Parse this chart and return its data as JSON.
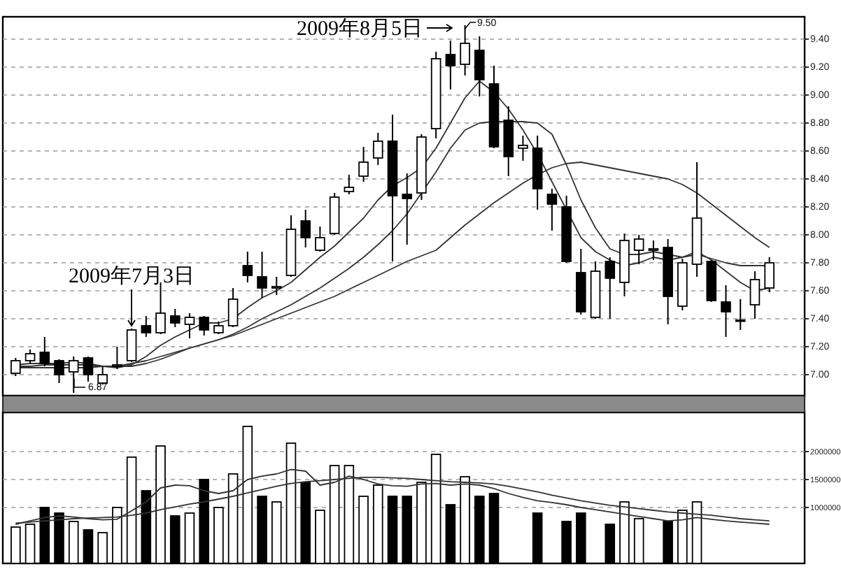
{
  "chart_data": [
    {
      "type": "candlestick",
      "categories": [
        null,
        null,
        null,
        null,
        null,
        null,
        null,
        null,
        null,
        null,
        null,
        null,
        null,
        null,
        null,
        null,
        null,
        null,
        null,
        null,
        null,
        null,
        null,
        null,
        null,
        null,
        null,
        null,
        null,
        null,
        null,
        null,
        null,
        null,
        null,
        null,
        null,
        null,
        null,
        null,
        null,
        null,
        null,
        null,
        null,
        null,
        null,
        null,
        null,
        null,
        null,
        null,
        null
      ],
      "ohlc": [
        [
          7.01,
          7.12,
          6.99,
          7.1
        ],
        [
          7.1,
          7.18,
          7.08,
          7.15
        ],
        [
          7.16,
          7.27,
          7.06,
          7.08
        ],
        [
          7.1,
          7.11,
          6.94,
          7.0
        ],
        [
          7.02,
          7.13,
          6.87,
          7.1
        ],
        [
          7.12,
          7.13,
          6.95,
          7.0
        ],
        [
          6.94,
          7.06,
          6.93,
          7.0
        ],
        [
          7.06,
          7.2,
          7.04,
          7.07
        ],
        [
          7.1,
          7.33,
          7.09,
          7.32
        ],
        [
          7.35,
          7.42,
          7.27,
          7.3
        ],
        [
          7.3,
          7.66,
          7.29,
          7.44
        ],
        [
          7.42,
          7.47,
          7.34,
          7.37
        ],
        [
          7.36,
          7.44,
          7.26,
          7.41
        ],
        [
          7.41,
          7.42,
          7.28,
          7.32
        ],
        [
          7.3,
          7.38,
          7.29,
          7.35
        ],
        [
          7.35,
          7.62,
          7.34,
          7.54
        ],
        [
          7.78,
          7.88,
          7.66,
          7.71
        ],
        [
          7.7,
          7.88,
          7.55,
          7.62
        ],
        [
          7.62,
          7.7,
          7.57,
          7.63
        ],
        [
          7.71,
          8.14,
          7.7,
          8.04
        ],
        [
          8.1,
          8.18,
          7.91,
          7.98
        ],
        [
          7.89,
          8.06,
          7.88,
          7.98
        ],
        [
          8.01,
          8.3,
          8.0,
          8.27
        ],
        [
          8.31,
          8.43,
          8.29,
          8.34
        ],
        [
          8.42,
          8.63,
          8.38,
          8.52
        ],
        [
          8.55,
          8.73,
          8.5,
          8.67
        ],
        [
          8.67,
          8.86,
          7.81,
          8.28
        ],
        [
          8.29,
          8.44,
          7.93,
          8.26
        ],
        [
          8.3,
          8.72,
          8.25,
          8.7
        ],
        [
          8.76,
          9.31,
          8.69,
          9.26
        ],
        [
          9.29,
          9.39,
          9.04,
          9.21
        ],
        [
          9.22,
          9.5,
          9.14,
          9.37
        ],
        [
          9.32,
          9.42,
          8.99,
          9.11
        ],
        [
          9.08,
          9.21,
          8.62,
          8.63
        ],
        [
          8.82,
          8.92,
          8.42,
          8.56
        ],
        [
          8.62,
          8.71,
          8.53,
          8.64
        ],
        [
          8.62,
          8.71,
          8.18,
          8.33
        ],
        [
          8.29,
          8.33,
          8.03,
          8.22
        ],
        [
          8.2,
          8.28,
          7.8,
          7.81
        ],
        [
          7.73,
          7.9,
          7.43,
          7.45
        ],
        [
          7.41,
          7.81,
          7.4,
          7.74
        ],
        [
          7.81,
          7.84,
          7.4,
          7.69
        ],
        [
          7.66,
          8.01,
          7.56,
          7.96
        ],
        [
          7.89,
          8.0,
          7.79,
          7.97
        ],
        [
          7.89,
          7.96,
          7.82,
          7.9
        ],
        [
          7.91,
          7.97,
          7.36,
          7.56
        ],
        [
          7.49,
          7.83,
          7.46,
          7.8
        ],
        [
          7.79,
          8.52,
          7.7,
          8.12
        ],
        [
          7.81,
          7.82,
          7.52,
          7.53
        ],
        [
          7.52,
          7.64,
          7.27,
          7.45
        ],
        [
          7.39,
          7.54,
          7.32,
          7.39
        ],
        [
          7.5,
          7.74,
          7.4,
          7.68
        ],
        [
          7.62,
          7.84,
          7.59,
          7.8
        ]
      ],
      "series": [
        {
          "type": "line",
          "color": "#333333",
          "values": [
            7.07,
            7.08,
            7.08,
            7.08,
            7.09,
            7.08,
            7.06,
            7.05,
            7.07,
            7.13,
            7.21,
            7.27,
            7.32,
            7.37,
            7.37,
            7.4,
            7.48,
            7.55,
            7.6,
            7.66,
            7.75,
            7.84,
            7.92,
            8.02,
            8.12,
            8.25,
            8.35,
            8.41,
            8.48,
            8.62,
            8.8,
            8.98,
            9.1,
            9.02,
            8.9,
            8.75,
            8.58,
            8.38,
            8.18,
            7.98,
            7.88,
            7.82,
            7.78,
            7.8,
            7.84,
            7.82,
            7.84,
            7.88,
            7.82,
            7.74,
            7.66,
            7.6,
            7.62
          ]
        },
        {
          "type": "line",
          "color": "#333333",
          "values": [
            7.06,
            7.06,
            7.07,
            7.07,
            7.07,
            7.07,
            7.06,
            7.06,
            7.06,
            7.08,
            7.11,
            7.15,
            7.19,
            7.22,
            7.25,
            7.29,
            7.34,
            7.4,
            7.45,
            7.5,
            7.56,
            7.62,
            7.69,
            7.76,
            7.84,
            7.93,
            8.03,
            8.15,
            8.3,
            8.45,
            8.62,
            8.75,
            8.8,
            8.81,
            8.81,
            8.81,
            8.8,
            8.72,
            8.5,
            8.25,
            8.05,
            7.9,
            7.86,
            7.86,
            7.88,
            7.86,
            7.84,
            7.86,
            7.83,
            7.8,
            7.78,
            7.78,
            7.78
          ]
        },
        {
          "type": "line",
          "color": "#333333",
          "values": [
            7.05,
            7.05,
            7.05,
            7.05,
            7.05,
            7.05,
            7.06,
            7.06,
            7.08,
            7.1,
            7.13,
            7.16,
            7.19,
            7.22,
            7.25,
            7.28,
            7.32,
            7.36,
            7.4,
            7.44,
            7.48,
            7.52,
            7.56,
            7.61,
            7.66,
            7.71,
            7.76,
            7.81,
            7.85,
            7.89,
            7.98,
            8.07,
            8.15,
            8.23,
            8.3,
            8.37,
            8.43,
            8.48,
            8.51,
            8.52,
            8.5,
            8.48,
            8.46,
            8.44,
            8.42,
            8.4,
            8.36,
            8.3,
            8.22,
            8.14,
            8.06,
            7.98,
            7.91
          ]
        }
      ],
      "ylim": [
        6.85,
        9.56
      ],
      "yticks": [
        {
          "value": 7,
          "label": "7.00"
        },
        {
          "value": 7.2,
          "label": "7.20"
        },
        {
          "value": 7.4,
          "label": "7.40"
        },
        {
          "value": 7.6,
          "label": "7.60"
        },
        {
          "value": 7.8,
          "label": "7.80"
        },
        {
          "value": 8,
          "label": "8.00"
        },
        {
          "value": 8.2,
          "label": "8.20"
        },
        {
          "value": 8.4,
          "label": "8.40"
        },
        {
          "value": 8.6,
          "label": "8.60"
        },
        {
          "value": 8.8,
          "label": "8.80"
        },
        {
          "value": 9,
          "label": "9.00"
        },
        {
          "value": 9.2,
          "label": "9.20"
        },
        {
          "value": 9.4,
          "label": "9.40"
        }
      ],
      "grid": "y",
      "annotations": [
        "2009年8月5日",
        "9.50",
        "2009年7月3日",
        "6.87"
      ]
    },
    {
      "type": "bar",
      "categories": [
        null,
        null,
        null,
        null,
        null,
        null,
        null,
        null,
        null,
        null,
        null,
        null,
        null,
        null,
        null,
        null,
        null,
        null,
        null,
        null,
        null,
        null,
        null,
        null,
        null,
        null,
        null,
        null,
        null,
        null,
        null,
        null,
        null,
        null,
        null,
        null,
        null,
        null,
        null,
        null,
        null,
        null,
        null,
        null,
        null,
        null,
        null,
        null,
        null,
        null,
        null,
        null,
        null
      ],
      "series": [
        {
          "values": [
            650000,
            700000,
            1000000,
            900000,
            750000,
            600000,
            550000,
            1000000,
            1900000,
            1300000,
            2100000,
            850000,
            900000,
            1500000,
            1000000,
            1600000,
            2450000,
            1200000,
            1100000,
            2150000,
            1450000,
            950000,
            1750000,
            1750000,
            1200000,
            1400000,
            1200000,
            1200000,
            1450000,
            1950000,
            1050000,
            1550000,
            1200000,
            1250000,
            null,
            null,
            900000,
            null,
            750000,
            900000,
            null,
            700000,
            1100000,
            800000,
            null,
            750000,
            950000,
            1100000,
            null,
            null,
            null,
            null,
            null
          ],
          "colors": [
            "#ffffff",
            "#ffffff",
            "#000000",
            "#000000",
            "#ffffff",
            "#000000",
            "#ffffff",
            "#ffffff",
            "#ffffff",
            "#000000",
            "#ffffff",
            "#000000",
            "#ffffff",
            "#000000",
            "#ffffff",
            "#ffffff",
            "#ffffff",
            "#000000",
            "#ffffff",
            "#ffffff",
            "#000000",
            "#ffffff",
            "#ffffff",
            "#ffffff",
            "#ffffff",
            "#ffffff",
            "#000000",
            "#000000",
            "#ffffff",
            "#ffffff",
            "#000000",
            "#ffffff",
            "#000000",
            "#000000",
            "#000000",
            "#ffffff",
            "#000000",
            "#000000",
            "#000000",
            "#000000",
            "#ffffff",
            "#000000",
            "#ffffff",
            "#ffffff",
            "#ffffff",
            "#000000",
            "#ffffff",
            "#ffffff",
            "#000000",
            "#000000",
            "#ffffff",
            "#ffffff",
            "#ffffff"
          ]
        },
        {
          "type": "line",
          "color": "#333333",
          "values": [
            700000,
            760000,
            820000,
            850000,
            830000,
            800000,
            780000,
            790000,
            940000,
            1100000,
            1350000,
            1400000,
            1390000,
            1300000,
            1250000,
            1300000,
            1500000,
            1560000,
            1600000,
            1680000,
            1650000,
            1400000,
            1450000,
            1560000,
            1500000,
            1420000,
            1390000,
            1380000,
            1420000,
            1430000,
            1400000,
            1420000,
            1400000,
            1340000,
            1250000,
            1180000,
            1120000,
            1090000,
            1050000,
            1000000,
            960000,
            920000,
            880000,
            840000,
            800000,
            760000,
            780000,
            820000,
            790000,
            760000,
            740000,
            720000,
            700000
          ]
        },
        {
          "type": "line",
          "color": "#333333",
          "values": [
            720000,
            740000,
            760000,
            780000,
            800000,
            810000,
            820000,
            830000,
            860000,
            900000,
            960000,
            1010000,
            1060000,
            1100000,
            1150000,
            1200000,
            1260000,
            1320000,
            1380000,
            1430000,
            1460000,
            1480000,
            1500000,
            1520000,
            1540000,
            1540000,
            1530000,
            1520000,
            1500000,
            1480000,
            1460000,
            1450000,
            1440000,
            1420000,
            1380000,
            1330000,
            1280000,
            1220000,
            1170000,
            1120000,
            1080000,
            1040000,
            1010000,
            980000,
            950000,
            920000,
            900000,
            880000,
            860000,
            830000,
            800000,
            780000,
            760000
          ]
        }
      ],
      "ylim": [
        0,
        2700000
      ],
      "yticks": [
        1000000,
        1500000,
        2000000
      ],
      "grid": "y"
    }
  ]
}
